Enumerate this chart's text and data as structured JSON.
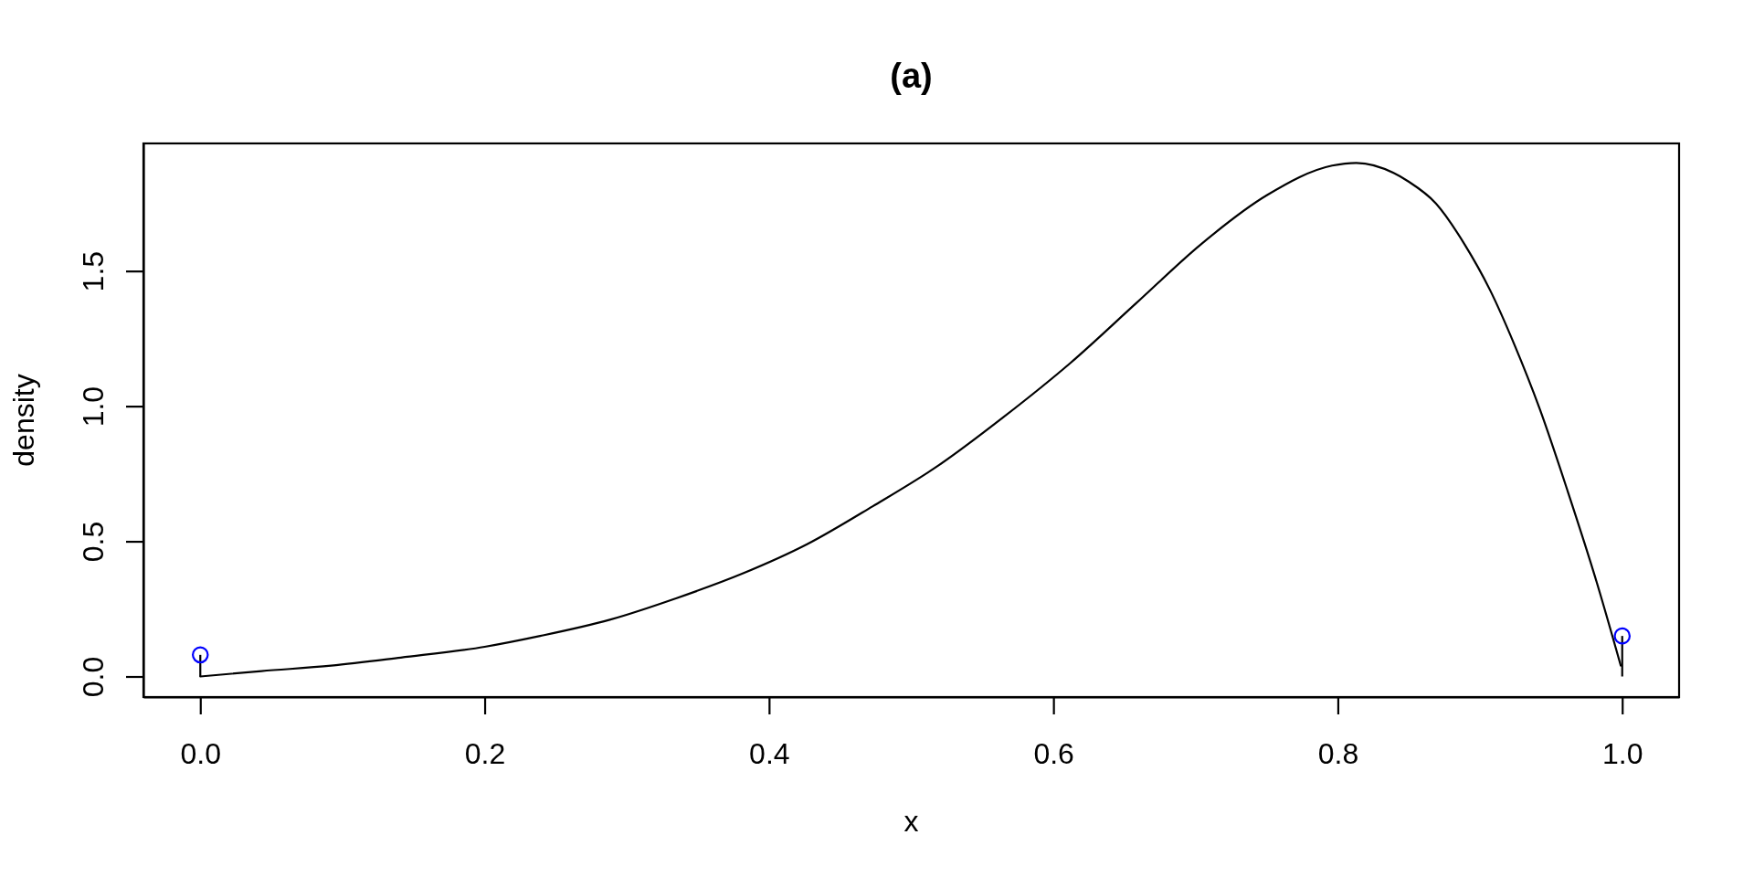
{
  "chart_data": {
    "type": "line",
    "title": "(a)",
    "xlabel": "x",
    "ylabel": "density",
    "xlim": [
      -0.04,
      1.04
    ],
    "ylim": [
      -0.076,
      1.972
    ],
    "xticks": [
      {
        "value": 0,
        "label": "0.0"
      },
      0.2,
      0.4,
      0.6,
      0.8,
      {
        "value": 1,
        "label": "1.0"
      }
    ],
    "yticks": [
      {
        "value": 0,
        "label": "0.0"
      },
      0.5,
      {
        "value": 1,
        "label": "1.0"
      },
      1.5
    ],
    "series": [
      {
        "color": "#000000",
        "x": [
          0,
          0.043,
          0.092,
          0.141,
          0.2,
          0.239,
          0.288,
          0.335,
          0.381,
          0.427,
          0.473,
          0.519,
          0.565,
          0.612,
          0.658,
          0.704,
          0.75,
          0.796,
          0.813,
          0.85,
          0.869,
          0.889,
          0.907,
          0.924,
          0.942,
          0.962,
          0.982,
          0.999
        ],
        "values": [
          0,
          0.02,
          0.04,
          0.07,
          0.11,
          0.15,
          0.21,
          0.29,
          0.38,
          0.49,
          0.63,
          0.78,
          0.96,
          1.16,
          1.38,
          1.6,
          1.78,
          1.89,
          1.9,
          1.83,
          1.75,
          1.6,
          1.43,
          1.23,
          0.99,
          0.68,
          0.35,
          0.04
        ]
      },
      {
        "type": "lollipop",
        "color": "#0000ff",
        "marker": "circle",
        "x": [
          0,
          1
        ],
        "values": [
          0.08,
          0.15
        ]
      }
    ]
  }
}
